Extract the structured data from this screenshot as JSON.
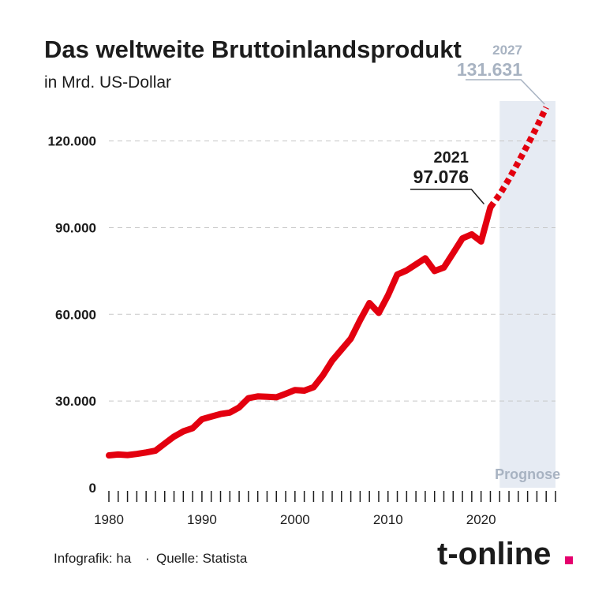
{
  "chart_data": {
    "type": "line",
    "title": "Das weltweite Bruttoinlandsprodukt",
    "subtitle": "in Mrd. US-Dollar",
    "xlim": [
      1980,
      2028
    ],
    "ylim": [
      0,
      130000
    ],
    "yticks": [
      0,
      30000,
      60000,
      90000,
      120000
    ],
    "ytick_labels": [
      "0",
      "30.000",
      "60.000",
      "90.000",
      "120.000"
    ],
    "xticks": [
      1980,
      1990,
      2000,
      2010,
      2020
    ],
    "xtick_labels": [
      "1980",
      "1990",
      "2000",
      "2010",
      "2020"
    ],
    "grid": true,
    "series": [
      {
        "style": "solid",
        "color": "#e3000f",
        "x": [
          1980,
          1981,
          1982,
          1983,
          1984,
          1985,
          1986,
          1987,
          1988,
          1989,
          1990,
          1991,
          1992,
          1993,
          1994,
          1995,
          1996,
          1997,
          1998,
          1999,
          2000,
          2001,
          2002,
          2003,
          2004,
          2005,
          2006,
          2007,
          2008,
          2009,
          2010,
          2011,
          2012,
          2013,
          2014,
          2015,
          2016,
          2017,
          2018,
          2019,
          2020,
          2021
        ],
        "y": [
          11200,
          11500,
          11300,
          11700,
          12200,
          12800,
          15300,
          17700,
          19500,
          20600,
          23700,
          24600,
          25500,
          26000,
          27800,
          31000,
          31600,
          31500,
          31300,
          32500,
          33800,
          33600,
          34800,
          38900,
          44000,
          47800,
          51600,
          58000,
          63900,
          60500,
          66600,
          73800,
          75200,
          77300,
          79400,
          75000,
          76200,
          81200,
          86300,
          87700,
          85200,
          97076
        ]
      },
      {
        "style": "dashed",
        "color": "#e3000f",
        "name": "Prognose",
        "x": [
          2021,
          2022,
          2023,
          2024,
          2025,
          2026,
          2027
        ],
        "y": [
          97076,
          101500,
          106800,
          112600,
          118600,
          124900,
          131631
        ]
      }
    ],
    "forecast_band": {
      "from": 2022,
      "to": 2028,
      "label": "Prognose",
      "color": "#e6ebf3"
    },
    "annotations": [
      {
        "year": "2021",
        "value": "97.076"
      },
      {
        "year": "2027",
        "value": "131.631"
      }
    ]
  },
  "footer": {
    "credit": "Infografik: ha",
    "separator": "·",
    "source": "Quelle: Statista"
  },
  "brand": {
    "name": "t-online",
    "dot_color": "#e5006d"
  }
}
